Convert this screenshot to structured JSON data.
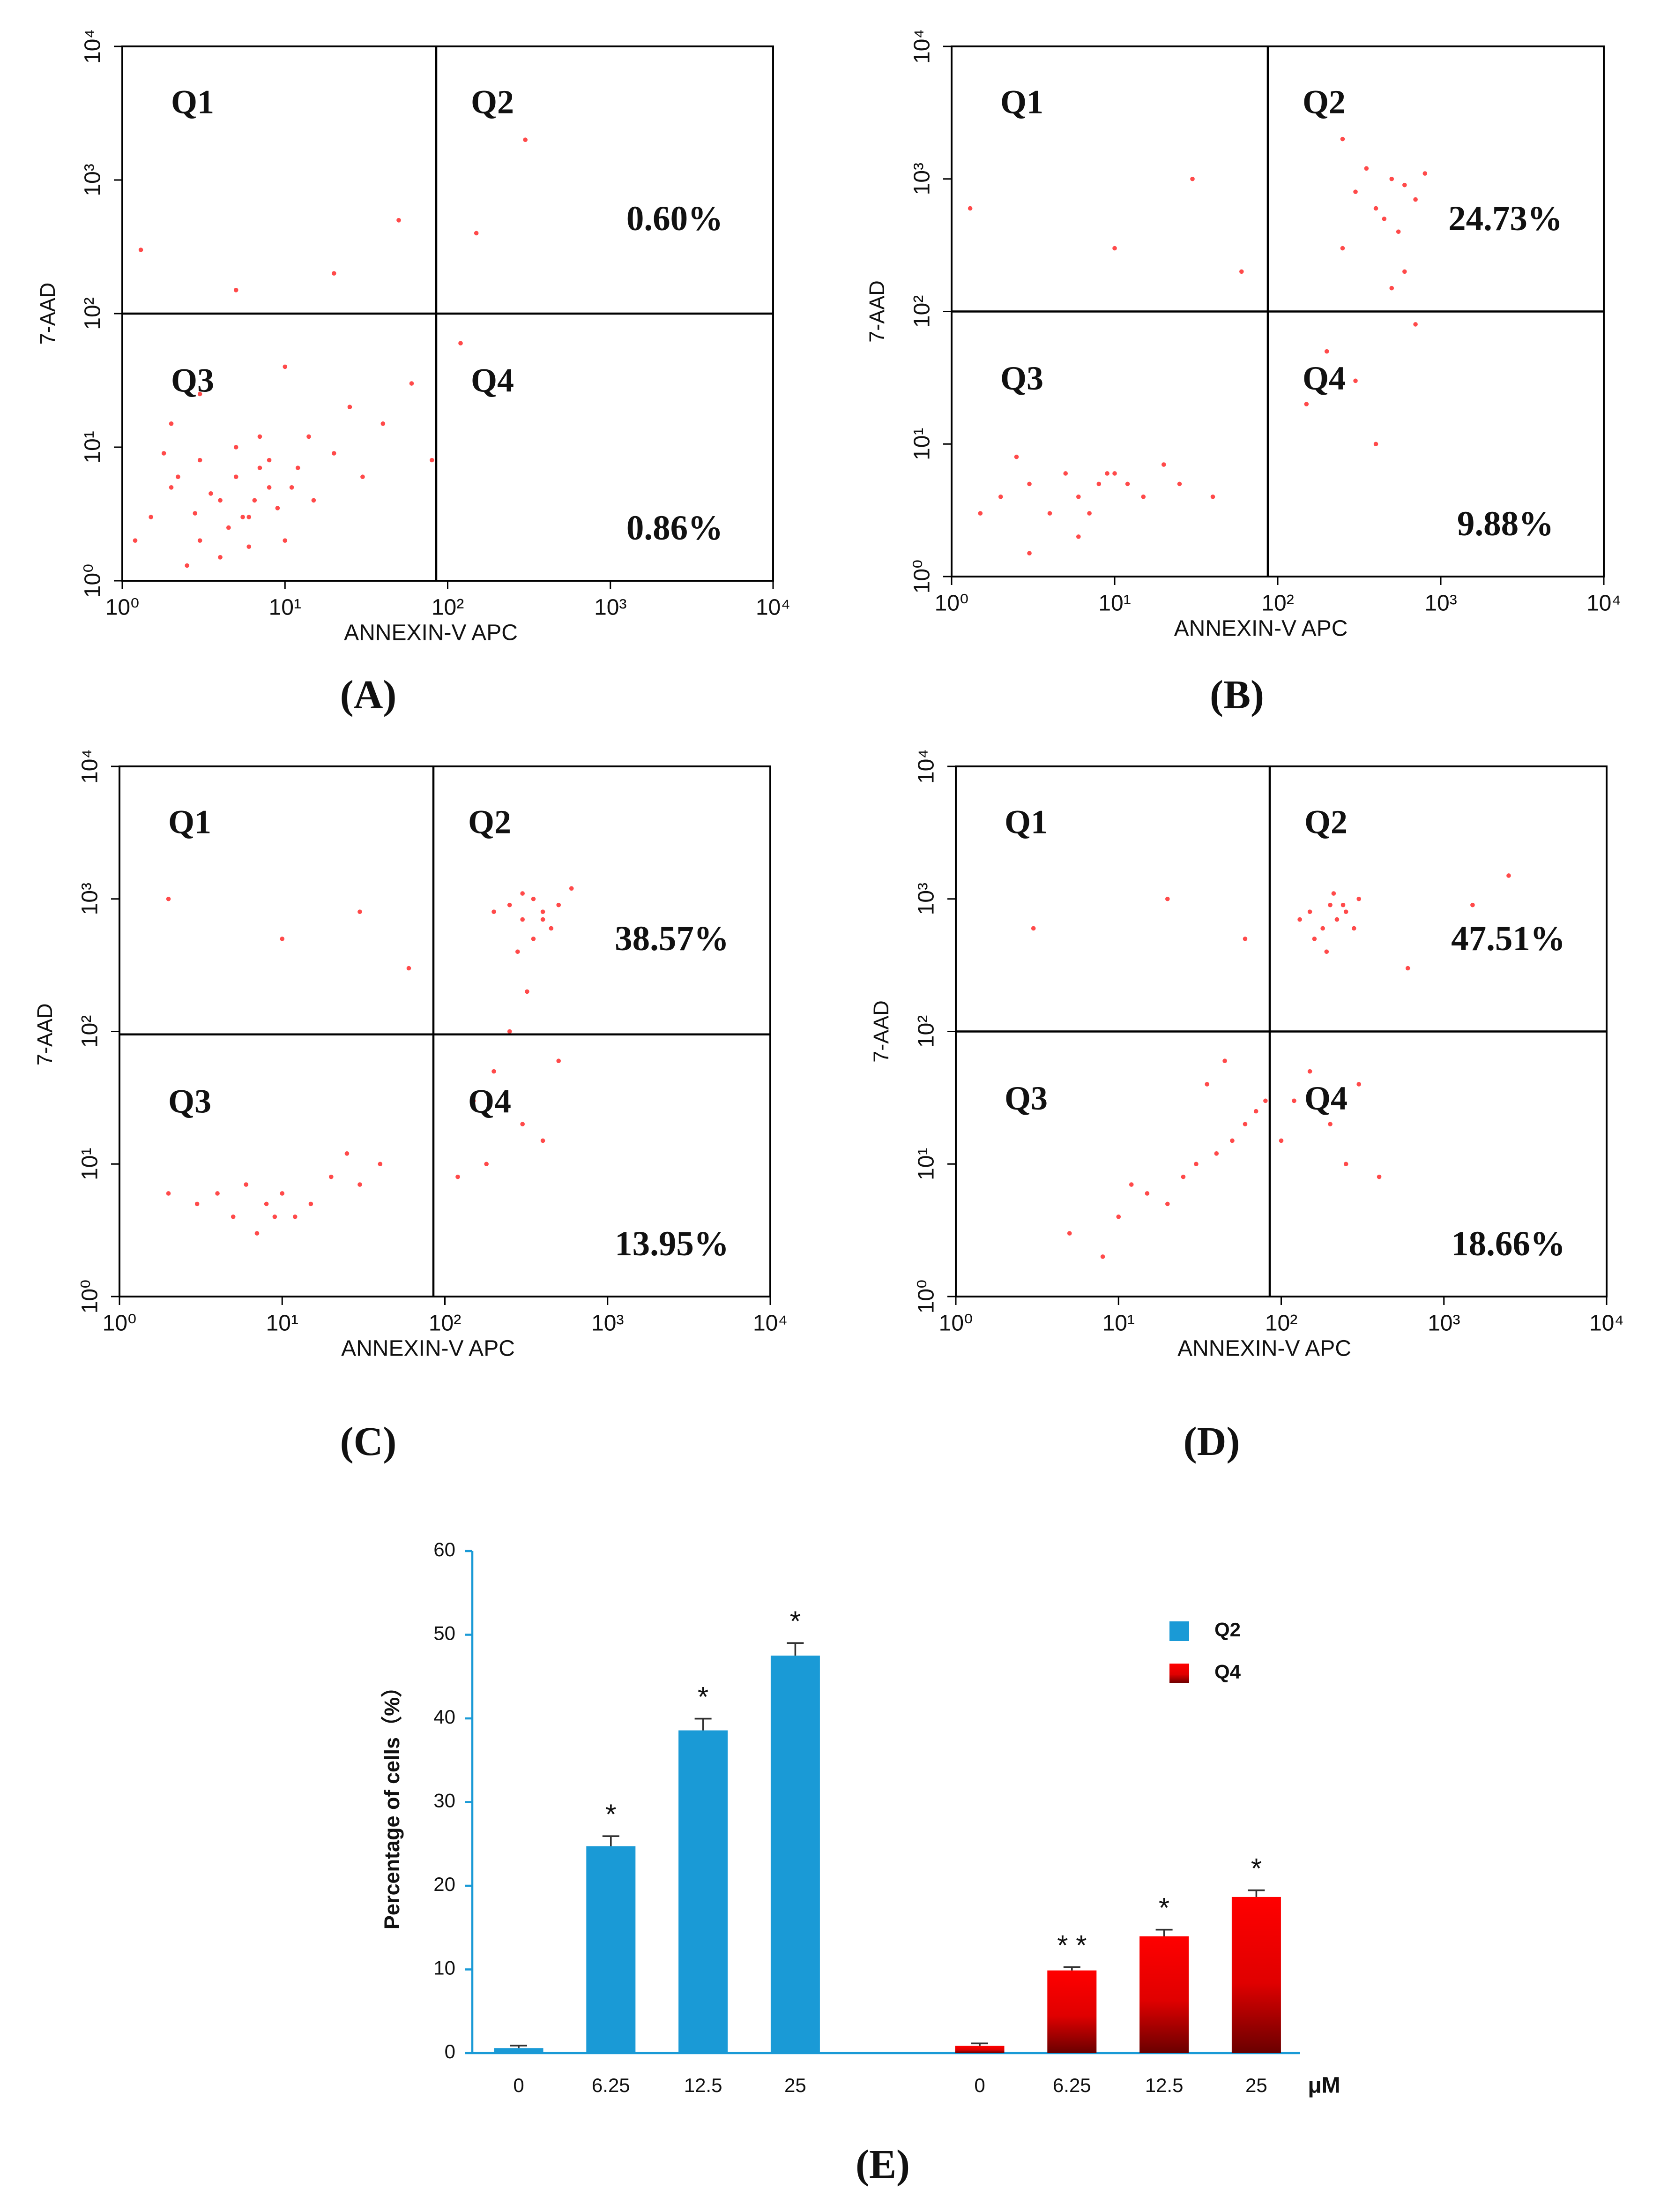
{
  "chart_data": [
    {
      "type": "scatter",
      "panel": "(A)",
      "xlabel": "ANNEXIN-V APC",
      "ylabel": "7-AAD",
      "log_x": true,
      "log_y": true,
      "color": "#ff2a2a",
      "xlim": [
        1,
        10000
      ],
      "ylim": [
        1,
        10000
      ],
      "xticks": [
        {
          "value": 1,
          "label": "10⁰"
        },
        {
          "value": 10,
          "label": "10¹"
        },
        {
          "value": 100,
          "label": "10²"
        },
        {
          "value": 1000,
          "label": "10³"
        },
        {
          "value": 10000,
          "label": "10⁴"
        }
      ],
      "yticks": [
        {
          "value": 1,
          "label": "10⁰"
        },
        {
          "value": 10,
          "label": "10¹"
        },
        {
          "value": 100,
          "label": "10²"
        },
        {
          "value": 1000,
          "label": "10³"
        },
        {
          "value": 10000,
          "label": "10⁴"
        }
      ],
      "gate_x": 85,
      "gate_y": 100,
      "quadrants": [
        "Q1",
        "Q2",
        "Q3",
        "Q4"
      ],
      "q2_value": 0.6,
      "q2_label": "0.60%",
      "q4_value": 0.86,
      "q4_label": "0.86%",
      "x": [
        1.5,
        2,
        3,
        4,
        5,
        6,
        8,
        10,
        3,
        5,
        7,
        2,
        12,
        15,
        20,
        30,
        4,
        1.2,
        2.5,
        6,
        9,
        14,
        25,
        40,
        60,
        1.3,
        20,
        50,
        150,
        300,
        5,
        10,
        3,
        80,
        120,
        8,
        3.5,
        5.5,
        7,
        2.2,
        4.5,
        6.5,
        1.8,
        11,
        2.8
      ],
      "y": [
        3,
        5,
        2,
        4,
        6,
        3,
        5,
        2,
        8,
        10,
        12,
        15,
        7,
        4,
        9,
        6,
        1.5,
        2,
        1.3,
        1.8,
        3.5,
        12,
        20,
        15,
        30,
        300,
        200,
        500,
        400,
        2000,
        150,
        40,
        25,
        8,
        60,
        8,
        4.5,
        3,
        7,
        6,
        2.5,
        4,
        9,
        5,
        3.2
      ]
    },
    {
      "type": "scatter",
      "panel": "(B)",
      "xlabel": "ANNEXIN-V APC",
      "ylabel": "7-AAD",
      "log_x": true,
      "log_y": true,
      "color": "#ff2a2a",
      "xlim": [
        1,
        10000
      ],
      "ylim": [
        1,
        10000
      ],
      "xticks": [
        {
          "value": 1,
          "label": "10⁰"
        },
        {
          "value": 10,
          "label": "10¹"
        },
        {
          "value": 100,
          "label": "10²"
        },
        {
          "value": 1000,
          "label": "10³"
        },
        {
          "value": 10000,
          "label": "10⁴"
        }
      ],
      "yticks": [
        {
          "value": 1,
          "label": "10⁰"
        },
        {
          "value": 10,
          "label": "10¹"
        },
        {
          "value": 100,
          "label": "10²"
        },
        {
          "value": 1000,
          "label": "10³"
        },
        {
          "value": 10000,
          "label": "10⁴"
        }
      ],
      "gate_x": 87,
      "gate_y": 100,
      "quadrants": [
        "Q1",
        "Q2",
        "Q3",
        "Q4"
      ],
      "q2_value": 24.73,
      "q2_label": "24.73%",
      "q4_value": 9.88,
      "q4_label": "9.88%",
      "x": [
        2,
        3,
        4,
        5,
        6,
        8,
        10,
        12,
        15,
        20,
        1.5,
        2.5,
        7,
        9,
        25,
        40,
        3,
        6,
        300,
        400,
        500,
        600,
        700,
        350,
        450,
        550,
        250,
        800,
        200,
        300,
        500,
        400,
        150,
        600,
        700,
        1.3,
        10,
        30,
        60,
        250
      ],
      "y": [
        4,
        5,
        3,
        6,
        4,
        5,
        6,
        5,
        4,
        7,
        3,
        8,
        3,
        6,
        5,
        4,
        1.5,
        2,
        800,
        600,
        1000,
        900,
        700,
        1200,
        500,
        400,
        300,
        1100,
        50,
        30,
        150,
        10,
        20,
        200,
        80,
        600,
        300,
        1000,
        200,
        2000
      ]
    },
    {
      "type": "scatter",
      "panel": "(C)",
      "xlabel": "ANNEXIN-V APC",
      "ylabel": "7-AAD",
      "log_x": true,
      "log_y": true,
      "color": "#ff2a2a",
      "xlim": [
        1,
        10000
      ],
      "ylim": [
        1,
        10000
      ],
      "xticks": [
        {
          "value": 1,
          "label": "10⁰"
        },
        {
          "value": 10,
          "label": "10¹"
        },
        {
          "value": 100,
          "label": "10²"
        },
        {
          "value": 1000,
          "label": "10³"
        },
        {
          "value": 10000,
          "label": "10⁴"
        }
      ],
      "yticks": [
        {
          "value": 1,
          "label": "10⁰"
        },
        {
          "value": 10,
          "label": "10¹"
        },
        {
          "value": 100,
          "label": "10²"
        },
        {
          "value": 1000,
          "label": "10³"
        },
        {
          "value": 10000,
          "label": "10⁴"
        }
      ],
      "gate_x": 85,
      "gate_y": 95,
      "quadrants": [
        "Q1",
        "Q2",
        "Q3",
        "Q4"
      ],
      "q2_value": 38.57,
      "q2_label": "38.57%",
      "q4_value": 13.95,
      "q4_label": "13.95%",
      "x": [
        3,
        4,
        5,
        6,
        8,
        10,
        12,
        15,
        20,
        30,
        2,
        7,
        9,
        40,
        25,
        200,
        250,
        300,
        350,
        400,
        450,
        500,
        300,
        350,
        400,
        280,
        320,
        150,
        200,
        250,
        300,
        400,
        180,
        120,
        500,
        2,
        10,
        30,
        60,
        600
      ],
      "y": [
        5,
        6,
        4,
        7,
        5,
        6,
        4,
        5,
        8,
        7,
        6,
        3,
        4,
        10,
        12,
        800,
        900,
        700,
        1000,
        800,
        600,
        900,
        1100,
        500,
        700,
        400,
        200,
        30,
        50,
        100,
        20,
        15,
        10,
        8,
        60,
        1000,
        500,
        800,
        300,
        1200
      ]
    },
    {
      "type": "scatter",
      "panel": "(D)",
      "xlabel": "ANNEXIN-V APC",
      "ylabel": "7-AAD",
      "log_x": true,
      "log_y": true,
      "color": "#ff2a2a",
      "xlim": [
        1,
        10000
      ],
      "ylim": [
        1,
        10000
      ],
      "xticks": [
        {
          "value": 1,
          "label": "10⁰"
        },
        {
          "value": 10,
          "label": "10¹"
        },
        {
          "value": 100,
          "label": "10²"
        },
        {
          "value": 1000,
          "label": "10³"
        },
        {
          "value": 10000,
          "label": "10⁴"
        }
      ],
      "yticks": [
        {
          "value": 1,
          "label": "10⁰"
        },
        {
          "value": 10,
          "label": "10¹"
        },
        {
          "value": 100,
          "label": "10²"
        },
        {
          "value": 1000,
          "label": "10³"
        },
        {
          "value": 10000,
          "label": "10⁴"
        }
      ],
      "gate_x": 85,
      "gate_y": 100,
      "quadrants": [
        "Q1",
        "Q2",
        "Q3",
        "Q4"
      ],
      "q2_value": 47.51,
      "q2_label": "47.51%",
      "q4_value": 18.66,
      "q4_label": "18.66%",
      "x": [
        10,
        15,
        20,
        25,
        30,
        40,
        50,
        60,
        70,
        80,
        5,
        8,
        12,
        35,
        45,
        130,
        150,
        180,
        200,
        220,
        250,
        280,
        300,
        160,
        190,
        210,
        240,
        100,
        120,
        150,
        200,
        250,
        300,
        400,
        600,
        3,
        20,
        60,
        1500,
        2500
      ],
      "y": [
        4,
        6,
        5,
        8,
        10,
        12,
        15,
        20,
        25,
        30,
        3,
        2,
        7,
        40,
        60,
        700,
        800,
        600,
        900,
        700,
        800,
        600,
        1000,
        500,
        400,
        1100,
        900,
        15,
        30,
        50,
        20,
        10,
        40,
        8,
        300,
        600,
        1000,
        500,
        900,
        1500
      ]
    },
    {
      "type": "bar",
      "panel": "(E)",
      "ylabel": "Percentage of cells（%）",
      "unit": "μM",
      "categories": [
        "0",
        "6.25",
        "12.5",
        "25",
        null,
        "0",
        "6.25",
        "12.5",
        "25"
      ],
      "ylim": [
        0,
        60
      ],
      "yticks": [
        0,
        10,
        20,
        30,
        40,
        50,
        60
      ],
      "legend": "top-right",
      "series": [
        {
          "name": "Q2",
          "color": "#1a9ad6",
          "values": [
            0.6,
            24.73,
            38.57,
            47.51,
            null,
            null,
            null,
            null,
            null
          ],
          "errors": [
            0.3,
            1.2,
            1.4,
            1.5,
            null,
            null,
            null,
            null,
            null
          ],
          "sig": [
            null,
            "*",
            "*",
            "*",
            null,
            null,
            null,
            null,
            null
          ]
        },
        {
          "name": "Q4",
          "color": "#ff0000",
          "values": [
            null,
            null,
            null,
            null,
            null,
            0.86,
            9.88,
            13.95,
            18.66
          ],
          "errors": [
            null,
            null,
            null,
            null,
            null,
            0.3,
            0.4,
            0.8,
            0.8
          ],
          "sig": [
            null,
            null,
            null,
            null,
            null,
            null,
            "* *",
            "*",
            "*"
          ]
        }
      ]
    }
  ]
}
